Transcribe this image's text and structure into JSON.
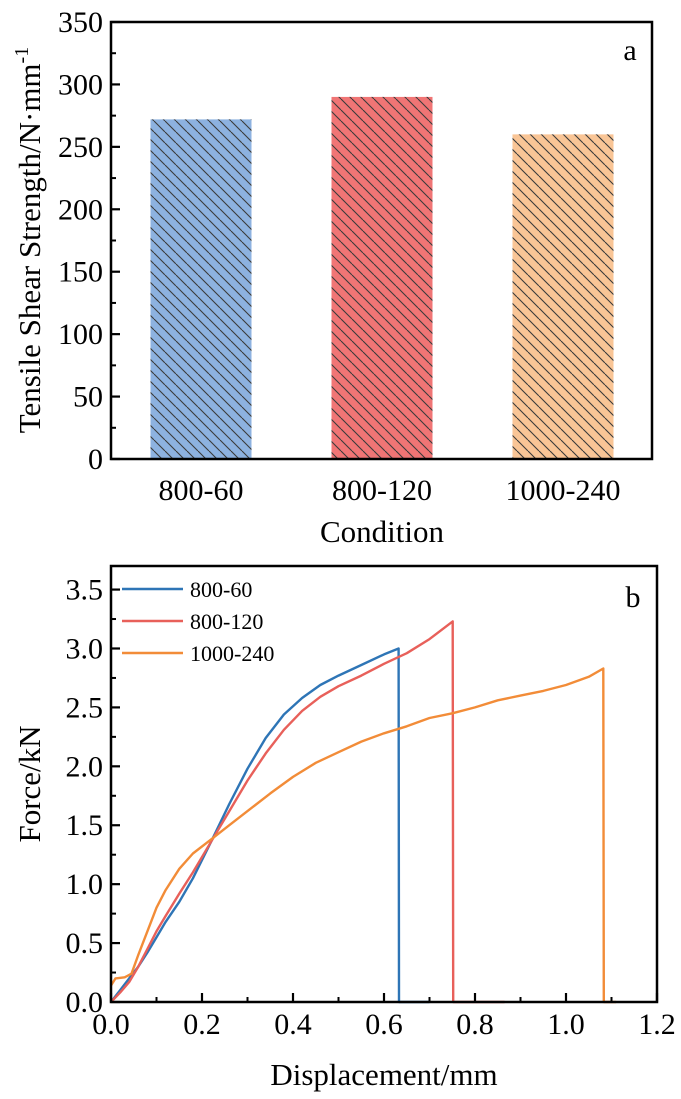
{
  "figure": {
    "panels": [
      "a",
      "b"
    ]
  },
  "chart_data": [
    {
      "type": "bar",
      "panel_label": "a",
      "title": "",
      "xlabel": "Condition",
      "ylabel": "Tensile Shear Strength/N·mm",
      "ylabel_superscript": "-1",
      "categories": [
        "800-60",
        "800-120",
        "1000-240"
      ],
      "values": [
        272,
        290,
        260
      ],
      "colors": [
        "#8DB2E0",
        "#F07575",
        "#F9C596"
      ],
      "hatch": "diagonal (\\\\) dark lines",
      "ylim": [
        0,
        350
      ],
      "yticks": [
        0,
        50,
        100,
        150,
        200,
        250,
        300,
        350
      ],
      "ytick_labels": [
        "0",
        "50",
        "100",
        "150",
        "200",
        "250",
        "300",
        "350"
      ],
      "grid": false,
      "legend": null
    },
    {
      "type": "line",
      "panel_label": "b",
      "title": "",
      "xlabel": "Displacement/mm",
      "ylabel": "Force/kN",
      "xlim": [
        0,
        1.2
      ],
      "ylim": [
        0,
        3.7
      ],
      "xticks": [
        0.0,
        0.2,
        0.4,
        0.6,
        0.8,
        1.0,
        1.2
      ],
      "xtick_labels": [
        "0.0",
        "0.2",
        "0.4",
        "0.6",
        "0.8",
        "1.0",
        "1.2"
      ],
      "yticks": [
        0.0,
        0.5,
        1.0,
        1.5,
        2.0,
        2.5,
        3.0,
        3.5
      ],
      "ytick_labels": [
        "0.0",
        "0.5",
        "1.0",
        "1.5",
        "2.0",
        "2.5",
        "3.0",
        "3.5"
      ],
      "grid": false,
      "legend_position": "top-left",
      "series": [
        {
          "name": "800-60",
          "color": "#2E75B6",
          "x": [
            0.0,
            0.02,
            0.04,
            0.06,
            0.08,
            0.1,
            0.12,
            0.15,
            0.18,
            0.22,
            0.26,
            0.3,
            0.34,
            0.38,
            0.42,
            0.46,
            0.5,
            0.55,
            0.6,
            0.632,
            0.633,
            0.7
          ],
          "y": [
            0.0,
            0.1,
            0.2,
            0.3,
            0.42,
            0.55,
            0.68,
            0.85,
            1.05,
            1.36,
            1.68,
            1.98,
            2.24,
            2.44,
            2.58,
            2.69,
            2.77,
            2.86,
            2.95,
            3.0,
            0.0,
            0.0
          ]
        },
        {
          "name": "800-120",
          "color": "#E8605A",
          "x": [
            0.0,
            0.02,
            0.04,
            0.06,
            0.08,
            0.1,
            0.12,
            0.15,
            0.18,
            0.22,
            0.26,
            0.3,
            0.34,
            0.38,
            0.42,
            0.46,
            0.5,
            0.55,
            0.6,
            0.65,
            0.7,
            0.751,
            0.752,
            0.865
          ],
          "y": [
            0.0,
            0.08,
            0.17,
            0.3,
            0.45,
            0.6,
            0.73,
            0.92,
            1.1,
            1.36,
            1.62,
            1.88,
            2.11,
            2.31,
            2.47,
            2.59,
            2.68,
            2.77,
            2.87,
            2.96,
            3.08,
            3.23,
            0.0,
            0.0
          ]
        },
        {
          "name": "1000-240",
          "color": "#F28C38",
          "x": [
            0.0,
            0.01,
            0.03,
            0.045,
            0.06,
            0.08,
            0.1,
            0.12,
            0.15,
            0.18,
            0.22,
            0.26,
            0.3,
            0.35,
            0.4,
            0.45,
            0.5,
            0.55,
            0.6,
            0.65,
            0.7,
            0.75,
            0.8,
            0.85,
            0.9,
            0.95,
            1.0,
            1.05,
            1.082,
            1.083,
            1.11
          ],
          "y": [
            0.14,
            0.2,
            0.21,
            0.24,
            0.4,
            0.6,
            0.8,
            0.95,
            1.13,
            1.26,
            1.38,
            1.5,
            1.62,
            1.77,
            1.91,
            2.03,
            2.12,
            2.21,
            2.28,
            2.34,
            2.41,
            2.45,
            2.5,
            2.56,
            2.6,
            2.64,
            2.69,
            2.76,
            2.83,
            0.0,
            0.0
          ]
        }
      ]
    }
  ]
}
